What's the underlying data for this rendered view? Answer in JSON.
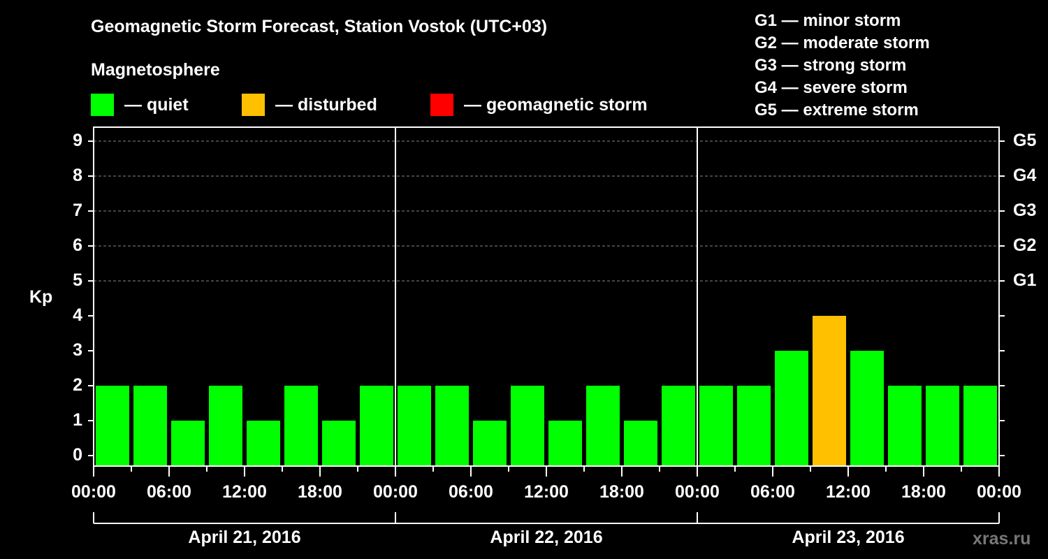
{
  "header": {
    "title": "Geomagnetic Storm Forecast, Station Vostok (UTC+03)",
    "subtitle": "Magnetosphere"
  },
  "legend": [
    {
      "label": "— quiet",
      "color": "#00ff00"
    },
    {
      "label": "— disturbed",
      "color": "#ffc000"
    },
    {
      "label": "— geomagnetic storm",
      "color": "#ff0000"
    }
  ],
  "storm_scale": [
    "G1 — minor storm",
    "G2 — moderate storm",
    "G3 — strong storm",
    "G4 — severe storm",
    "G5 — extreme storm"
  ],
  "watermark": "xras.ru",
  "chart_data": {
    "type": "bar",
    "title": "Geomagnetic Storm Forecast, Station Vostok (UTC+03)",
    "ylabel": "Kp",
    "xlabel": "",
    "ylim": [
      0,
      9
    ],
    "yticks": [
      "0",
      "1",
      "2",
      "3",
      "4",
      "5",
      "6",
      "7",
      "8",
      "9"
    ],
    "right_axis_labels": [
      {
        "kp": 5,
        "label": "G1"
      },
      {
        "kp": 6,
        "label": "G2"
      },
      {
        "kp": 7,
        "label": "G3"
      },
      {
        "kp": 8,
        "label": "G4"
      },
      {
        "kp": 9,
        "label": "G5"
      }
    ],
    "grid": "dashed horizontal at Kp 5-9",
    "xticks": [
      "00:00",
      "06:00",
      "12:00",
      "18:00",
      "00:00",
      "06:00",
      "12:00",
      "18:00",
      "00:00",
      "06:00",
      "12:00",
      "18:00",
      "00:00"
    ],
    "days": [
      "April 21, 2016",
      "April 22, 2016",
      "April 23, 2016"
    ],
    "categories": [
      "Apr21 00-03",
      "Apr21 03-06",
      "Apr21 06-09",
      "Apr21 09-12",
      "Apr21 12-15",
      "Apr21 15-18",
      "Apr21 18-21",
      "Apr21 21-24",
      "Apr22 00-03",
      "Apr22 03-06",
      "Apr22 06-09",
      "Apr22 09-12",
      "Apr22 12-15",
      "Apr22 15-18",
      "Apr22 18-21",
      "Apr22 21-24",
      "Apr23 00-03",
      "Apr23 03-06",
      "Apr23 06-09",
      "Apr23 09-12",
      "Apr23 12-15",
      "Apr23 15-18",
      "Apr23 18-21",
      "Apr23 21-24"
    ],
    "values": [
      2,
      2,
      1,
      2,
      1,
      2,
      1,
      2,
      2,
      2,
      1,
      2,
      1,
      2,
      1,
      2,
      2,
      2,
      3,
      4,
      3,
      2,
      2,
      2
    ],
    "status": [
      "quiet",
      "quiet",
      "quiet",
      "quiet",
      "quiet",
      "quiet",
      "quiet",
      "quiet",
      "quiet",
      "quiet",
      "quiet",
      "quiet",
      "quiet",
      "quiet",
      "quiet",
      "quiet",
      "quiet",
      "quiet",
      "quiet",
      "disturbed",
      "quiet",
      "quiet",
      "quiet",
      "quiet"
    ],
    "colors": {
      "quiet": "#00ff00",
      "disturbed": "#ffc000",
      "storm": "#ff0000"
    }
  }
}
